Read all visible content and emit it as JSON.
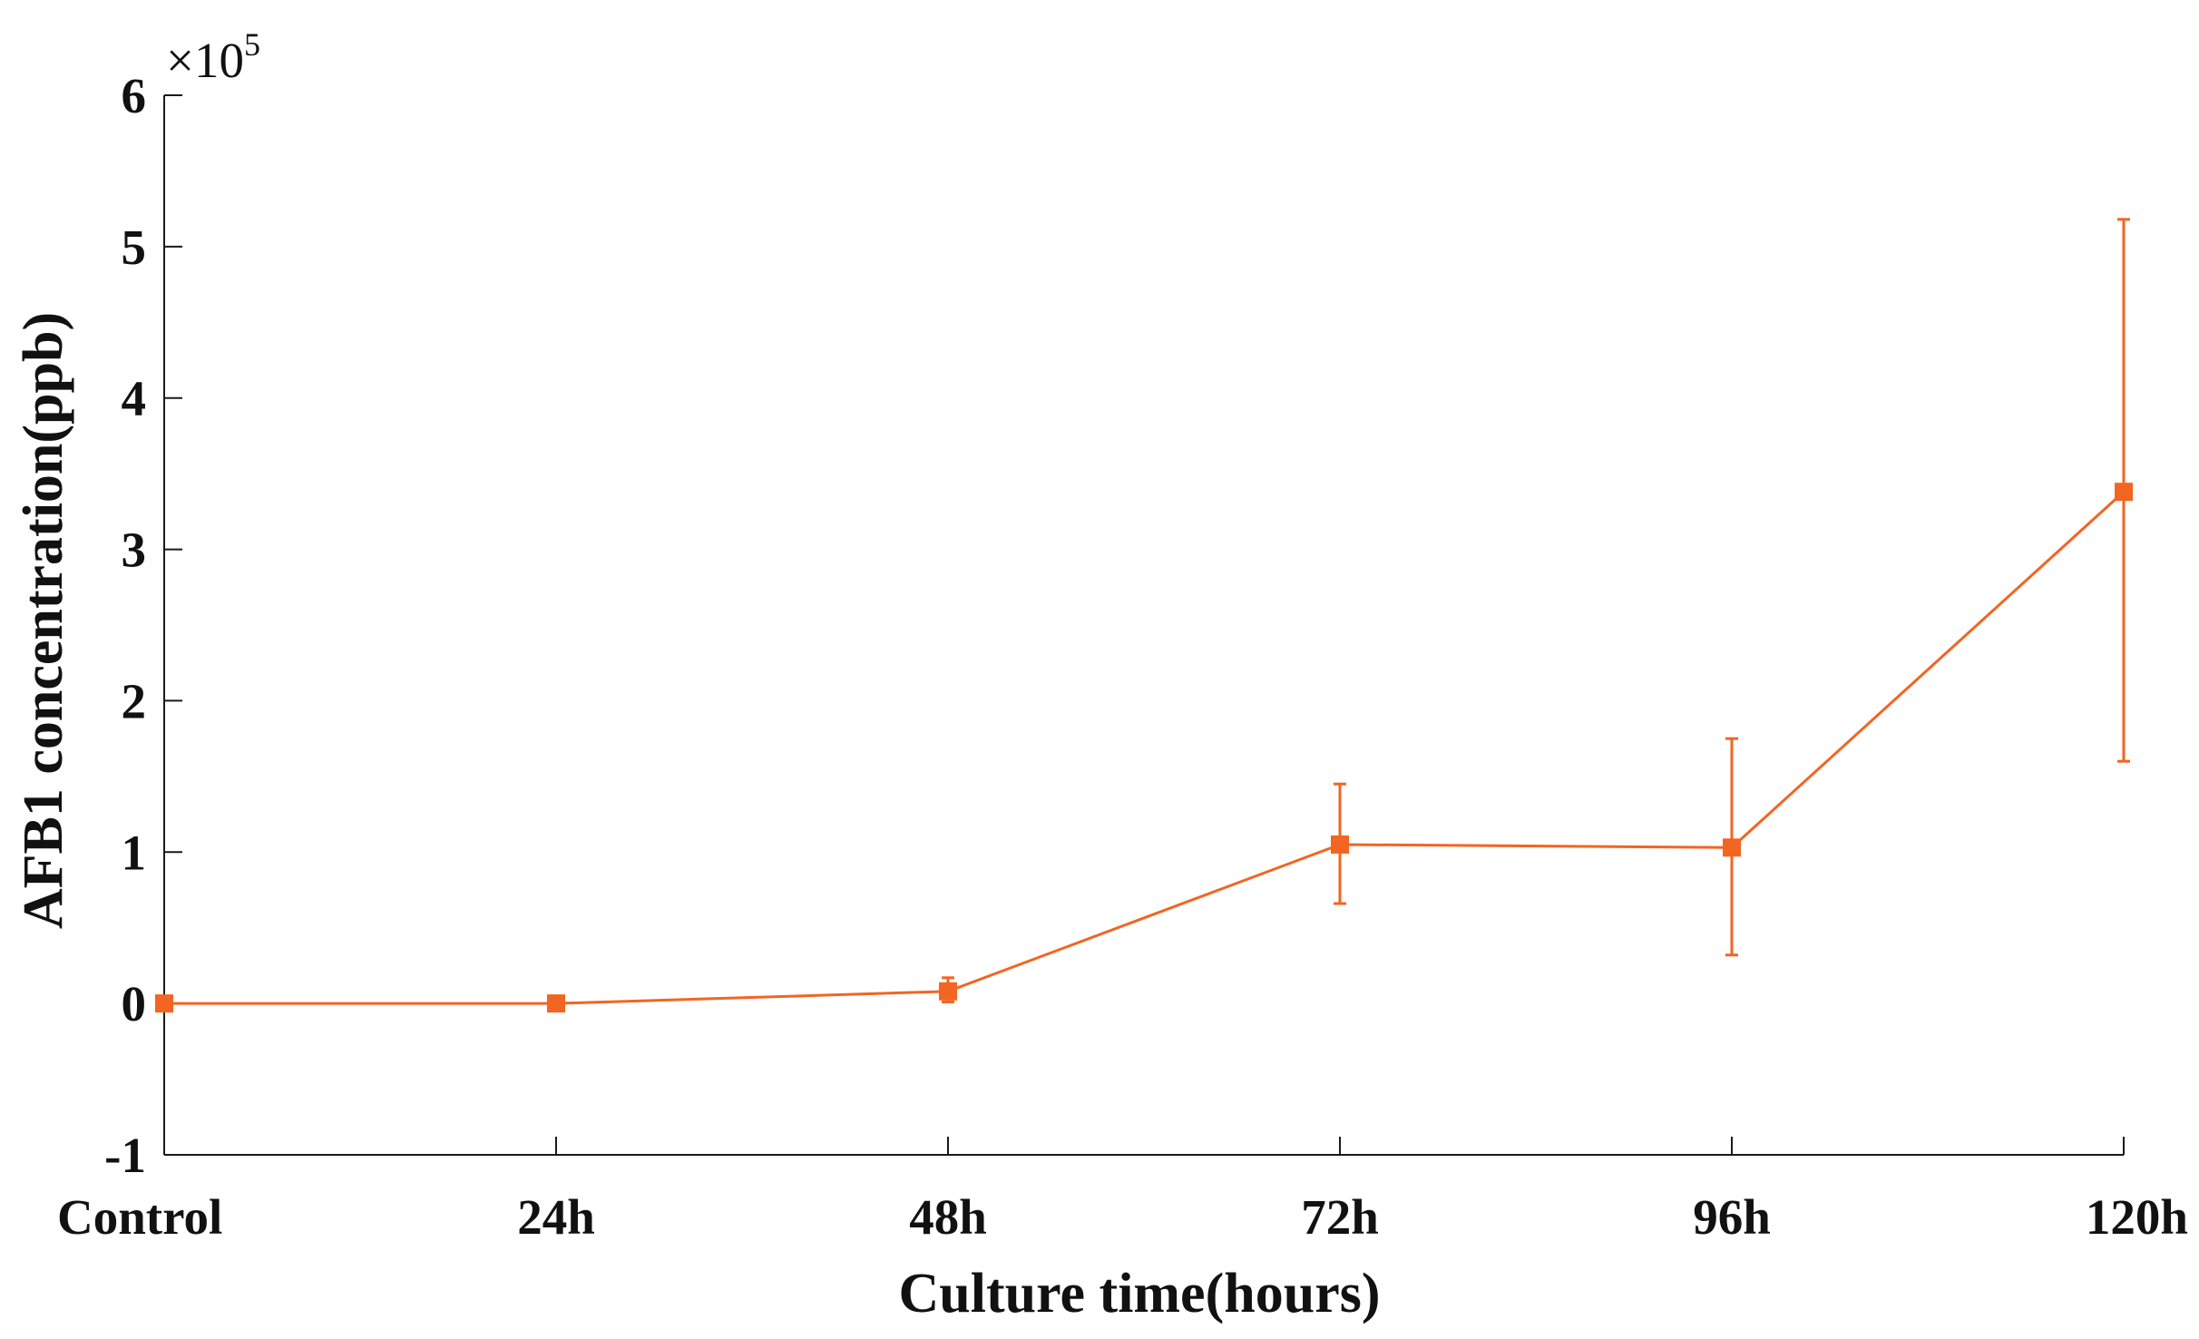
{
  "chart_data": {
    "type": "line",
    "title": "",
    "xlabel": "Culture time(hours)",
    "ylabel": "AFB1 concentration(ppb)",
    "categories": [
      "Control",
      "24h",
      "48h",
      "72h",
      "96h",
      "120h"
    ],
    "y_exponent_base": "10",
    "y_exponent_power": "5",
    "y_multiplier_prefix": "×",
    "yticks": [
      "-1",
      "0",
      "1",
      "2",
      "3",
      "4",
      "5",
      "6"
    ],
    "ylim": [
      -1,
      6
    ],
    "grid": false,
    "legend": "none",
    "series": [
      {
        "values": [
          0.0,
          0.0,
          0.08,
          1.05,
          1.03,
          3.38
        ],
        "error_low": [
          0.0,
          0.0,
          0.01,
          0.66,
          0.32,
          1.6
        ],
        "error_high": [
          0.0,
          0.0,
          0.17,
          1.45,
          1.75,
          5.18
        ],
        "color": "#F26522",
        "marker": "square"
      }
    ]
  }
}
